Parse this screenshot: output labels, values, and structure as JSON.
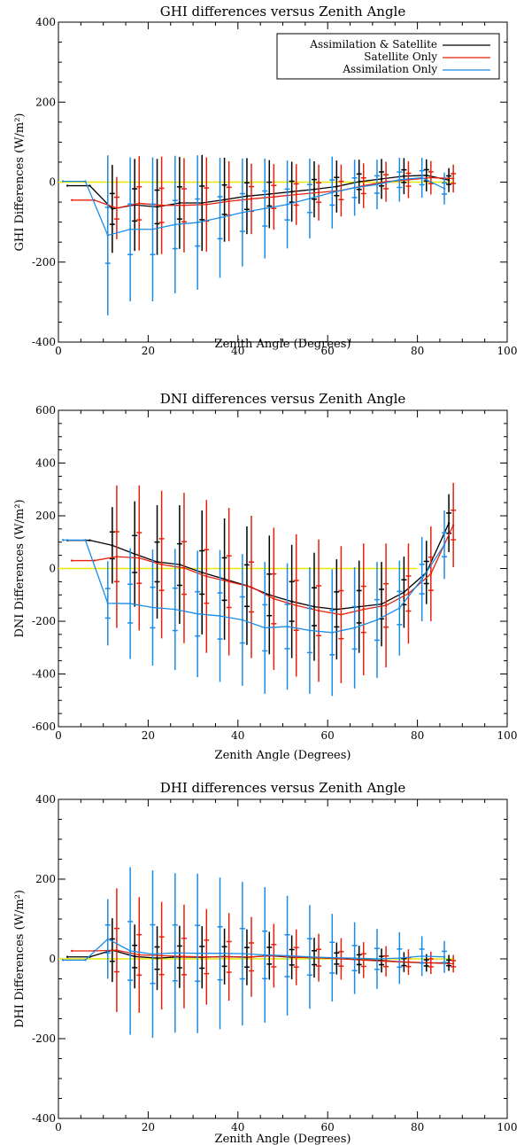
{
  "chart_data": [
    {
      "type": "line",
      "title": "GHI differences versus Zenith Angle",
      "xlabel": "Zenith Angle (Degrees)",
      "ylabel": "GHI Differences (W/m²)",
      "xlim": [
        0,
        100
      ],
      "ylim": [
        -400,
        400
      ],
      "xticks": [
        0,
        20,
        40,
        60,
        80,
        100
      ],
      "yticks": [
        -400,
        -200,
        0,
        200,
        400
      ],
      "grid": false,
      "legend_position": "top-right",
      "legend": true,
      "reference_line": {
        "y": 0,
        "x_range": [
          0,
          88
        ],
        "color": "#e8e800"
      },
      "series": [
        {
          "name": "Assimilation & Satellite",
          "color": "#000000",
          "x": [
            2,
            7,
            12,
            17,
            22,
            27,
            32,
            37,
            42,
            47,
            52,
            57,
            62,
            67,
            72,
            77,
            82,
            87
          ],
          "y": [
            -9,
            -9,
            -67,
            -57,
            -62,
            -52,
            -52,
            -44,
            -35,
            -30,
            -24,
            -18,
            -11,
            1,
            8,
            15,
            17,
            5
          ],
          "err": [
            0,
            0,
            110,
            115,
            120,
            115,
            120,
            105,
            95,
            85,
            75,
            70,
            65,
            55,
            50,
            45,
            40,
            30
          ]
        },
        {
          "name": "Satellite Only",
          "color": "#e8200a",
          "x": [
            3,
            8,
            13,
            18,
            23,
            28,
            33,
            38,
            43,
            48,
            53,
            58,
            63,
            68,
            73,
            78,
            83,
            88
          ],
          "y": [
            -45,
            -45,
            -65,
            -53,
            -58,
            -58,
            -56,
            -48,
            -42,
            -37,
            -31,
            -26,
            -21,
            -9,
            1,
            6,
            11,
            9
          ],
          "err": [
            0,
            0,
            78,
            118,
            122,
            118,
            118,
            100,
            88,
            82,
            76,
            70,
            65,
            56,
            50,
            46,
            42,
            35
          ]
        },
        {
          "name": "Assimilation Only",
          "color": "#1a8ce8",
          "x": [
            1,
            6,
            11,
            16,
            21,
            26,
            31,
            36,
            41,
            46,
            51,
            56,
            61,
            66,
            71,
            76,
            81,
            86
          ],
          "y": [
            2,
            2,
            -133,
            -118,
            -118,
            -106,
            -101,
            -89,
            -76,
            -66,
            -56,
            -41,
            -26,
            -14,
            -6,
            6,
            11,
            -16
          ],
          "err": [
            0,
            0,
            200,
            180,
            180,
            172,
            168,
            150,
            135,
            125,
            110,
            100,
            90,
            70,
            62,
            55,
            50,
            40
          ]
        }
      ]
    },
    {
      "type": "line",
      "title": "DNI differences versus Zenith Angle",
      "xlabel": "Zenith Angle (Degrees)",
      "ylabel": "DNI Differences (W/m²)",
      "xlim": [
        0,
        100
      ],
      "ylim": [
        -600,
        600
      ],
      "xticks": [
        0,
        20,
        40,
        60,
        80,
        100
      ],
      "yticks": [
        -600,
        -400,
        -200,
        0,
        200,
        400,
        600
      ],
      "grid": false,
      "legend": false,
      "reference_line": {
        "y": 0,
        "x_range": [
          0,
          80
        ],
        "color": "#e8e800"
      },
      "series": [
        {
          "name": "Assimilation & Satellite",
          "color": "#000000",
          "x": [
            2,
            7,
            12,
            17,
            22,
            27,
            32,
            37,
            42,
            47,
            52,
            57,
            62,
            67,
            72,
            77,
            82,
            87
          ],
          "y": [
            107,
            107,
            88,
            55,
            25,
            15,
            -15,
            -40,
            -65,
            -100,
            -125,
            -145,
            -155,
            -145,
            -135,
            -90,
            -15,
            172
          ],
          "err": [
            0,
            0,
            145,
            200,
            215,
            225,
            235,
            230,
            225,
            225,
            215,
            205,
            190,
            175,
            160,
            135,
            120,
            110
          ]
        },
        {
          "name": "Satellite Only",
          "color": "#e8200a",
          "x": [
            3,
            8,
            13,
            18,
            23,
            28,
            33,
            38,
            43,
            48,
            53,
            58,
            63,
            68,
            73,
            78,
            83,
            88
          ],
          "y": [
            30,
            30,
            45,
            40,
            15,
            2,
            -30,
            -50,
            -70,
            -115,
            -140,
            -160,
            -175,
            -155,
            -140,
            -95,
            -20,
            165
          ],
          "err": [
            0,
            0,
            270,
            275,
            280,
            285,
            290,
            280,
            270,
            270,
            270,
            270,
            260,
            250,
            235,
            190,
            180,
            160
          ]
        },
        {
          "name": "Assimilation Only",
          "color": "#1a8ce8",
          "x": [
            1,
            6,
            11,
            16,
            21,
            26,
            31,
            36,
            41,
            46,
            51,
            56,
            61,
            66,
            71,
            76,
            81,
            86
          ],
          "y": [
            108,
            108,
            -132,
            -133,
            -148,
            -155,
            -172,
            -180,
            -195,
            -225,
            -220,
            -235,
            -243,
            -225,
            -195,
            -150,
            -40,
            90
          ],
          "err": [
            0,
            0,
            160,
            210,
            220,
            230,
            240,
            250,
            250,
            250,
            240,
            240,
            240,
            230,
            220,
            180,
            160,
            130
          ]
        }
      ]
    },
    {
      "type": "line",
      "title": "DHI differences versus Zenith Angle",
      "xlabel": "Zenith Angle (Degrees)",
      "ylabel": "DHI Differences (W/m²)",
      "xlim": [
        0,
        100
      ],
      "ylim": [
        -400,
        400
      ],
      "xticks": [
        0,
        20,
        40,
        60,
        80,
        100
      ],
      "yticks": [
        -400,
        -200,
        0,
        200,
        400
      ],
      "grid": false,
      "legend": false,
      "reference_line": {
        "y": 0,
        "x_range": [
          0,
          88
        ],
        "color": "#e8e800"
      },
      "series": [
        {
          "name": "Assimilation & Satellite",
          "color": "#000000",
          "x": [
            2,
            7,
            12,
            17,
            22,
            27,
            32,
            37,
            42,
            47,
            52,
            57,
            62,
            67,
            72,
            77,
            82,
            87
          ],
          "y": [
            5,
            5,
            22,
            6,
            2,
            5,
            4,
            6,
            4,
            8,
            4,
            3,
            1,
            -2,
            -4,
            -8,
            -10,
            -10
          ],
          "err": [
            0,
            0,
            80,
            80,
            80,
            78,
            78,
            70,
            70,
            60,
            55,
            50,
            40,
            35,
            30,
            25,
            22,
            20
          ]
        },
        {
          "name": "Satellite Only",
          "color": "#e8200a",
          "x": [
            3,
            8,
            13,
            18,
            23,
            28,
            33,
            38,
            43,
            48,
            53,
            58,
            63,
            68,
            73,
            78,
            83,
            88
          ],
          "y": [
            20,
            20,
            22,
            10,
            8,
            6,
            5,
            5,
            5,
            8,
            4,
            3,
            0,
            -3,
            -6,
            -8,
            -10,
            -12
          ],
          "err": [
            0,
            0,
            155,
            145,
            135,
            130,
            120,
            110,
            100,
            80,
            70,
            60,
            52,
            45,
            38,
            32,
            28,
            22
          ]
        },
        {
          "name": "Assimilation Only",
          "color": "#1a8ce8",
          "x": [
            1,
            6,
            11,
            16,
            21,
            26,
            31,
            36,
            41,
            46,
            51,
            56,
            61,
            66,
            71,
            76,
            81,
            86
          ],
          "y": [
            -3,
            -3,
            50,
            20,
            12,
            15,
            14,
            14,
            13,
            10,
            8,
            5,
            3,
            2,
            0,
            2,
            7,
            5
          ],
          "err": [
            0,
            0,
            100,
            210,
            210,
            200,
            200,
            190,
            180,
            170,
            150,
            130,
            110,
            90,
            75,
            65,
            50,
            40
          ]
        }
      ]
    }
  ]
}
